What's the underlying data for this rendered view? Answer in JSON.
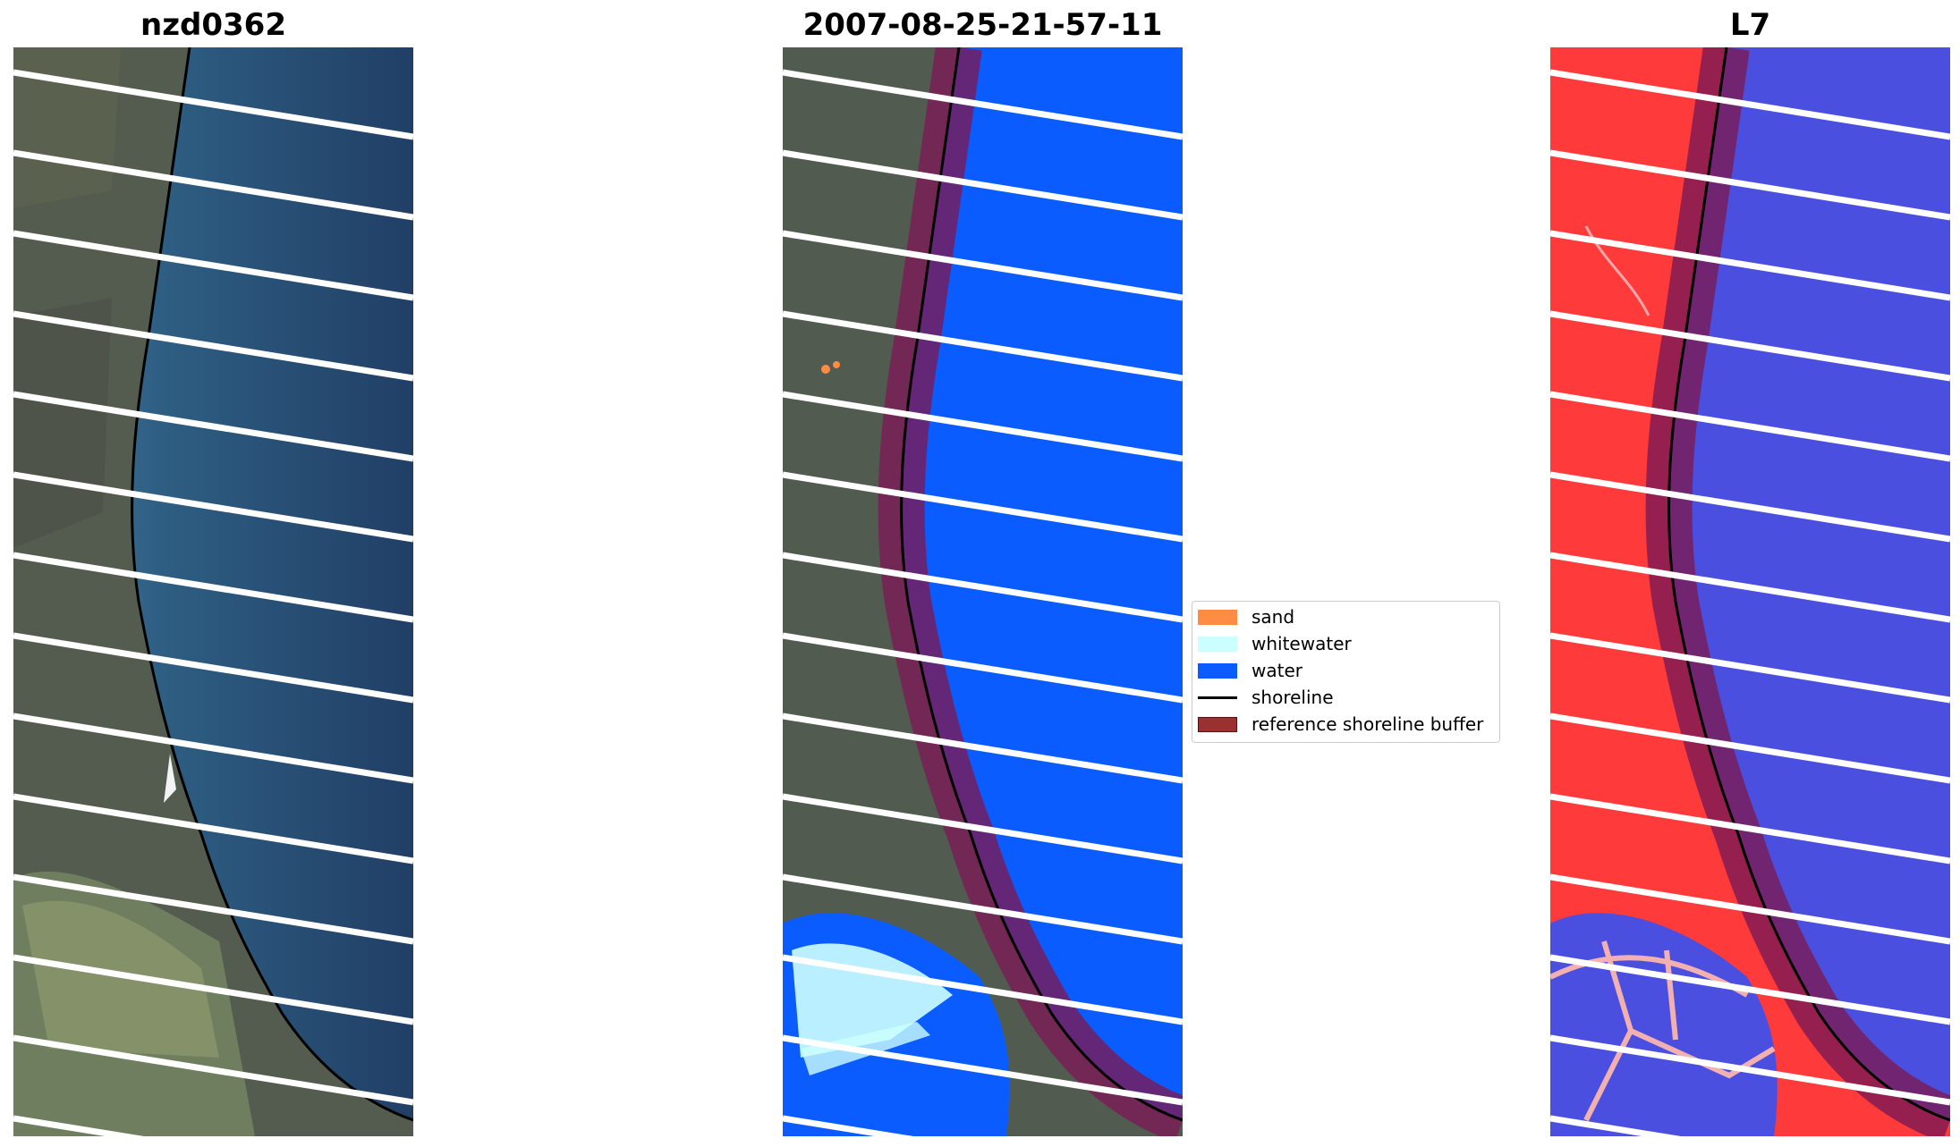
{
  "panels": [
    {
      "title": "nzd0362"
    },
    {
      "title": "2007-08-25-21-57-11"
    },
    {
      "title": "L7"
    }
  ],
  "legend": {
    "items": [
      {
        "label": "sand",
        "color": "#ff8c42"
      },
      {
        "label": "whitewater",
        "color": "#ccffff"
      },
      {
        "label": "water",
        "color": "#0a5cff"
      },
      {
        "label": "shoreline",
        "color": "#000000"
      },
      {
        "label": "reference shoreline buffer",
        "color": "#9b3030"
      }
    ]
  },
  "colors": {
    "ocean_rgb": "#2b4e6e",
    "land_rgb": "#4f5a48",
    "classified_water": "#0a5cff",
    "ndwi_land": "#ff3030",
    "ndwi_water": "#4a4fe0",
    "buffer": "#7a1a55"
  }
}
